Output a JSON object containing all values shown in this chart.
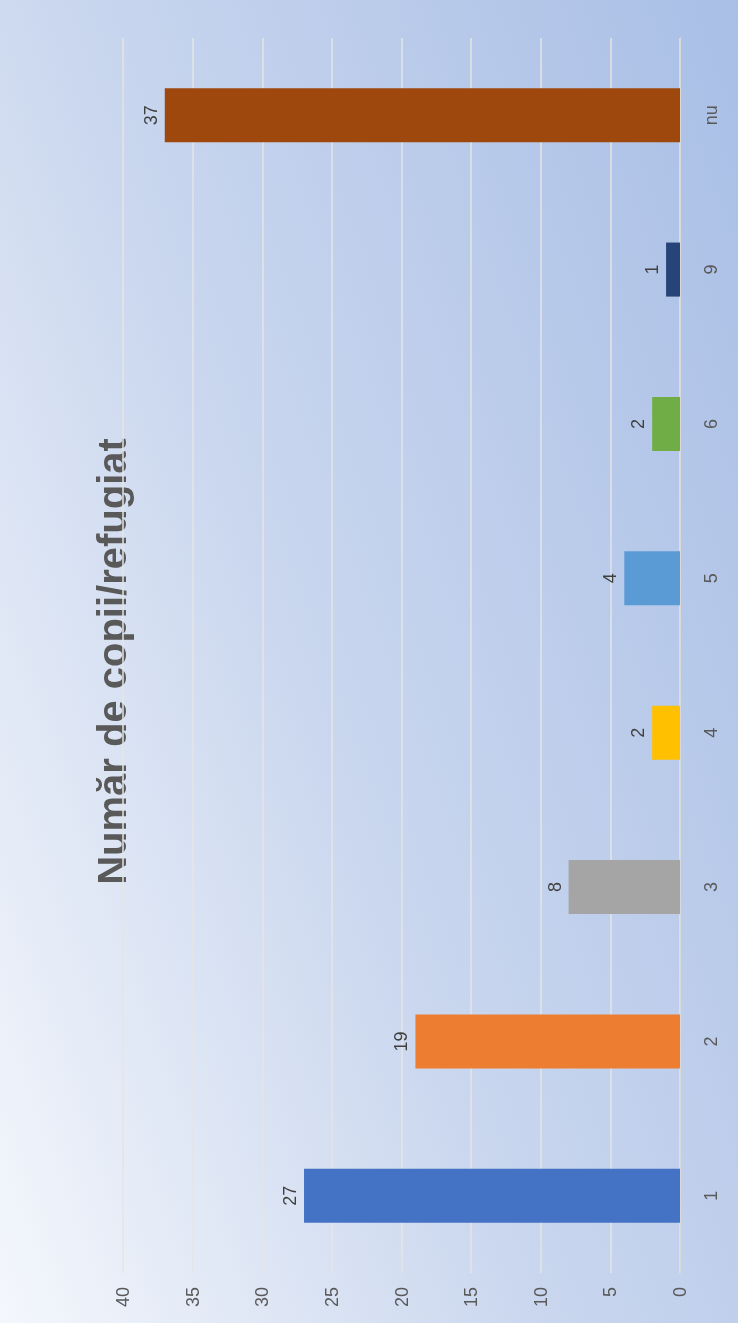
{
  "chart_data": {
    "type": "bar",
    "title": "Număr de copii/refugiat",
    "orientation": "horizontal",
    "categories": [
      "nu",
      "9",
      "6",
      "5",
      "4",
      "3",
      "2",
      "1"
    ],
    "values": [
      37,
      1,
      2,
      4,
      2,
      8,
      19,
      27
    ],
    "colors": [
      "#9e480e",
      "#264478",
      "#70ad47",
      "#5b9bd5",
      "#ffc000",
      "#a5a5a5",
      "#ed7d31",
      "#4472c4"
    ],
    "xlim": [
      40,
      0
    ],
    "xticks": [
      40,
      35,
      30,
      25,
      20,
      15,
      10,
      5,
      0
    ],
    "grid": "x",
    "data_labels": true
  }
}
